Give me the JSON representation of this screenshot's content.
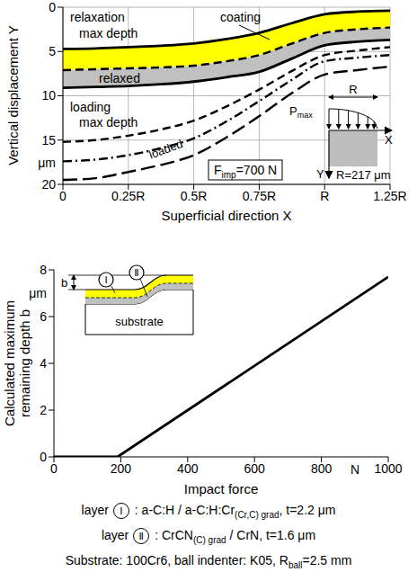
{
  "chart_data": [
    {
      "type": "line",
      "x_label": "Superficial direction X",
      "y_label": "Vertical displacement Y",
      "y_unit": "μm",
      "x": [
        0,
        0.125,
        0.25,
        0.375,
        0.5,
        0.625,
        0.75,
        0.875,
        1,
        1.125,
        1.25
      ],
      "xlim": [
        0,
        1.25
      ],
      "xticks": [
        0,
        {
          "value": 0.25,
          "label": "0.25R"
        },
        {
          "value": 0.5,
          "label": "0.5R"
        },
        {
          "value": 0.75,
          "label": "0.75R"
        },
        {
          "value": 1,
          "label": "R"
        },
        {
          "value": 1.25,
          "label": "1.25R"
        }
      ],
      "ylim": [
        20,
        0
      ],
      "yticks": [
        0,
        5,
        10,
        15,
        20
      ],
      "grid": true,
      "series": [
        {
          "type": "area",
          "color": "#ffff00",
          "values": [
            [
              4.7,
              7.1
            ],
            [
              4.65,
              7.0
            ],
            [
              4.5,
              6.9
            ],
            [
              4.35,
              6.8
            ],
            [
              4.1,
              6.6
            ],
            [
              3.6,
              6.1
            ],
            [
              2.9,
              5.4
            ],
            [
              1.8,
              4.1
            ],
            [
              0.8,
              2.9
            ],
            [
              0.5,
              2.5
            ],
            [
              0.4,
              2.3
            ]
          ]
        },
        {
          "type": "area",
          "color": "#c0c0c0",
          "values": [
            [
              7.1,
              9.1
            ],
            [
              7.0,
              9.0
            ],
            [
              6.9,
              8.9
            ],
            [
              6.8,
              8.7
            ],
            [
              6.6,
              8.4
            ],
            [
              6.1,
              7.9
            ],
            [
              5.4,
              7.3
            ],
            [
              4.1,
              5.8
            ],
            [
              2.9,
              4.3
            ],
            [
              2.5,
              3.9
            ],
            [
              2.3,
              3.7
            ]
          ]
        },
        {
          "type": "line",
          "color": "#000000",
          "line_style": "solid",
          "values": [
            4.7,
            4.65,
            4.5,
            4.35,
            4.1,
            3.6,
            2.9,
            1.8,
            0.8,
            0.5,
            0.4
          ]
        },
        {
          "type": "line",
          "color": "#000000",
          "line_style": "dashed",
          "values": [
            7.1,
            7.0,
            6.9,
            6.8,
            6.6,
            6.1,
            5.4,
            4.1,
            2.9,
            2.5,
            2.3
          ]
        },
        {
          "type": "line",
          "color": "#000000",
          "line_style": "solid",
          "values": [
            9.1,
            9.0,
            8.9,
            8.7,
            8.4,
            7.9,
            7.3,
            5.8,
            4.3,
            3.9,
            3.7
          ]
        },
        {
          "type": "line",
          "color": "#000000",
          "line_style": "dashed",
          "values": [
            15.2,
            15.0,
            14.5,
            13.8,
            12.8,
            11.2,
            9.3,
            7.2,
            5.4,
            4.9,
            4.5
          ]
        },
        {
          "type": "line",
          "color": "#000000",
          "line_style": "dashdot",
          "values": [
            17.4,
            17.2,
            16.7,
            15.9,
            14.8,
            12.9,
            10.6,
            8.2,
            6.1,
            5.7,
            5.4
          ]
        },
        {
          "type": "line",
          "color": "#000000",
          "line_style": "longdash",
          "values": [
            19.5,
            19.3,
            18.6,
            17.8,
            16.7,
            14.7,
            12.3,
            9.7,
            7.6,
            7.1,
            6.7
          ]
        }
      ],
      "annotations": {
        "relaxation_label": "relaxation max depth",
        "coating_label": "coating",
        "relaxed_label": "relaxed",
        "loading_label": "loading max depth",
        "loaded_label": "loaded",
        "force": {
          "symbol": "F",
          "subscript": "imp",
          "text": "=700 N"
        },
        "inset": {
          "load_symbol": "P",
          "load_subscript": "max",
          "radius": "R",
          "x_axis": "X",
          "y_axis": "Y",
          "radius_value": "R=217 μm"
        }
      }
    },
    {
      "type": "line",
      "x_label": "Impact force",
      "x_unit": "N",
      "y_label": "Calculated maximum remaining depth b",
      "y_unit": "μm",
      "x": [
        0,
        190,
        1000
      ],
      "values": [
        0,
        0,
        7.7
      ],
      "color": "#000000",
      "line_style": "solid",
      "xlim": [
        0,
        1000
      ],
      "xticks": [
        0,
        200,
        400,
        600,
        800,
        1000
      ],
      "ylim": [
        0,
        8
      ],
      "yticks": [
        0,
        2,
        4,
        6,
        8
      ],
      "grid": false,
      "inset": {
        "depth_symbol": "b",
        "layer_labels": [
          "Ⅰ",
          "Ⅱ"
        ],
        "substrate": "substrate"
      }
    }
  ],
  "captions": [
    {
      "prefix": "layer",
      "numeral": "Ⅰ",
      "text": " : a-C:H / a-C:H:Cr",
      "subscript": "(Cr,C) grad",
      "suffix": ", t=2.2 μm"
    },
    {
      "prefix": "layer",
      "numeral": "Ⅱ",
      "text": " : CrCN",
      "subscript": "(C) grad",
      "suffix": " / CrN, t=1.6 μm"
    },
    {
      "text": "Substrate: 100Cr6, ball indenter: K05, R",
      "subscript": "ball",
      "suffix": "=2.5 mm"
    }
  ]
}
